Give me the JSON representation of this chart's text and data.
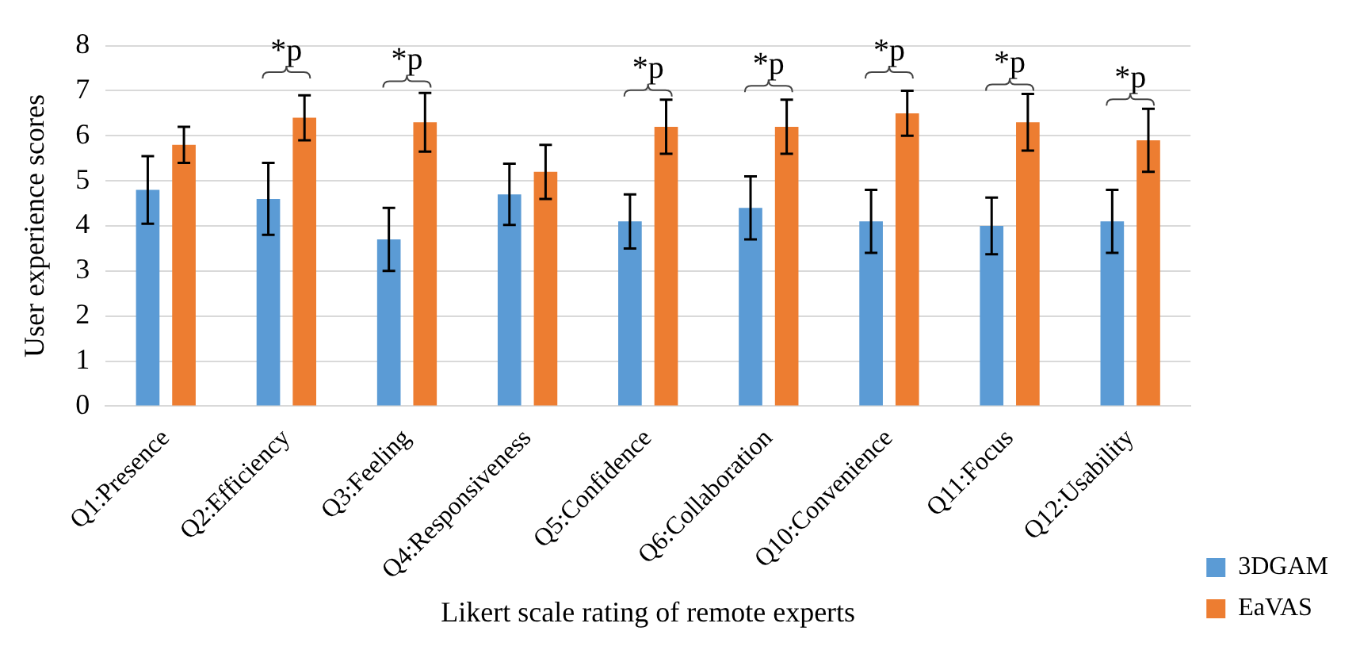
{
  "chart_data": {
    "type": "bar",
    "xlabel": "Likert scale rating of remote experts",
    "ylabel": "User experience scores",
    "categories": [
      "Q1:Presence",
      "Q2:Efficiency",
      "Q3:Feeling",
      "Q4:Responsiveness",
      "Q5:Confidence",
      "Q6:Collaboration",
      "Q10:Convenience",
      "Q11:Focus",
      "Q12:Usability"
    ],
    "series": [
      {
        "name": "3DGAM",
        "color": "#5b9bd5",
        "values": [
          4.8,
          4.6,
          3.7,
          4.7,
          4.1,
          4.4,
          4.1,
          4.0,
          4.1
        ],
        "errors": [
          0.75,
          0.8,
          0.7,
          0.68,
          0.6,
          0.7,
          0.7,
          0.63,
          0.7
        ]
      },
      {
        "name": "EaVAS",
        "color": "#ed7d31",
        "values": [
          5.8,
          6.4,
          6.3,
          5.2,
          6.2,
          6.2,
          6.5,
          6.3,
          5.9
        ],
        "errors": [
          0.4,
          0.5,
          0.65,
          0.6,
          0.6,
          0.6,
          0.5,
          0.63,
          0.7
        ]
      }
    ],
    "ylim": [
      0,
      8
    ],
    "yticks": [
      0,
      1,
      2,
      3,
      4,
      5,
      6,
      7,
      8
    ],
    "grid": "y",
    "legend": "bottom right",
    "annotations": [
      {
        "text": "*p",
        "x": "Q2:Efficiency",
        "y": 6.4
      },
      {
        "text": "*p",
        "x": "Q3:Feeling",
        "y": 6.3
      },
      {
        "text": "*p",
        "x": "Q5:Confidence",
        "y": 6.2
      },
      {
        "text": "*p",
        "x": "Q6:Collaboration",
        "y": 6.2
      },
      {
        "text": "*p",
        "x": "Q10:Convenience",
        "y": 6.5
      },
      {
        "text": "*p",
        "x": "Q11:Focus",
        "y": 6.3
      },
      {
        "text": "*p",
        "x": "Q12:Usability",
        "y": 5.9
      }
    ]
  }
}
